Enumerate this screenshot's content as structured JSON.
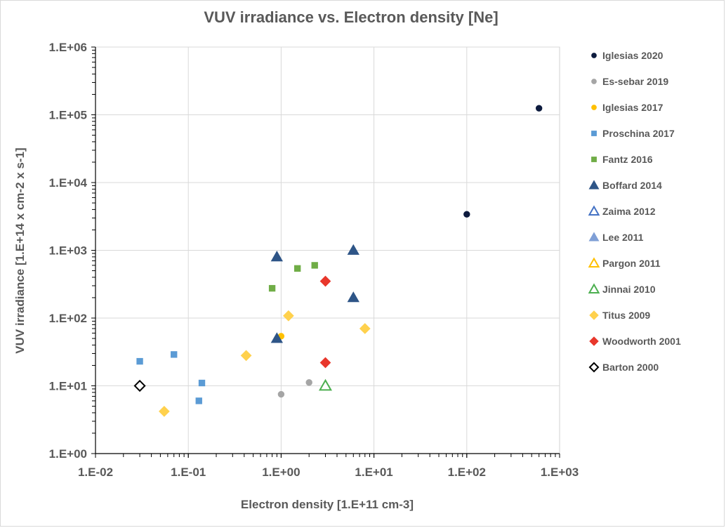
{
  "chart_data": {
    "type": "scatter",
    "title": "VUV irradiance vs. Electron density [Ne]",
    "xlabel": "Electron density [1.E+11 cm-3]",
    "ylabel": "VUV irradiance [1.E+14 x cm-2 x s-1]",
    "x_scale": "log",
    "y_scale": "log",
    "xlim": [
      0.01,
      1000
    ],
    "ylim": [
      1,
      1000000
    ],
    "x_ticks": [
      0.01,
      0.1,
      1,
      10,
      100,
      1000
    ],
    "x_tick_labels": [
      "1.E-02",
      "1.E-01",
      "1.E+00",
      "1.E+01",
      "1.E+02",
      "1.E+03"
    ],
    "y_ticks": [
      1,
      10,
      100,
      1000,
      10000,
      100000,
      1000000
    ],
    "y_tick_labels": [
      "1.E+00",
      "1.E+01",
      "1.E+02",
      "1.E+03",
      "1.E+04",
      "1.E+05",
      "1.E+06"
    ],
    "grid": true,
    "legend_position": "right",
    "series": [
      {
        "name": "Iglesias 2020",
        "marker": "circle",
        "color": "#0d1b3e",
        "filled": true,
        "points": [
          [
            100,
            3400
          ],
          [
            600,
            125000
          ]
        ]
      },
      {
        "name": "Es-sebar 2019",
        "marker": "circle",
        "color": "#a5a5a5",
        "filled": true,
        "points": [
          [
            1.0,
            7.5
          ],
          [
            2.0,
            11.2
          ]
        ]
      },
      {
        "name": "Iglesias 2017",
        "marker": "circle",
        "color": "#ffc000",
        "filled": true,
        "points": [
          [
            1.0,
            54
          ]
        ]
      },
      {
        "name": "Proschina 2017",
        "marker": "square",
        "color": "#5b9bd5",
        "filled": true,
        "points": [
          [
            0.03,
            23
          ],
          [
            0.07,
            29
          ],
          [
            0.13,
            6
          ],
          [
            0.14,
            11
          ]
        ]
      },
      {
        "name": "Fantz 2016",
        "marker": "square",
        "color": "#70ad47",
        "filled": true,
        "points": [
          [
            0.8,
            275
          ],
          [
            1.5,
            540
          ],
          [
            2.3,
            600
          ]
        ]
      },
      {
        "name": "Boffard 2014",
        "marker": "triangle",
        "color": "#2e5587",
        "filled": true,
        "points": [
          [
            0.9,
            800
          ],
          [
            0.9,
            50
          ],
          [
            6.0,
            1000
          ],
          [
            6.0,
            200
          ]
        ]
      },
      {
        "name": "Zaima 2012",
        "marker": "triangle",
        "color": "#4472c4",
        "filled": false,
        "points": []
      },
      {
        "name": "Lee 2011",
        "marker": "triangle",
        "color": "#7f9fd6",
        "filled": true,
        "points": []
      },
      {
        "name": "Pargon 2011",
        "marker": "triangle",
        "color": "#ffc000",
        "filled": false,
        "points": []
      },
      {
        "name": "Jinnai 2010",
        "marker": "triangle",
        "color": "#4caf50",
        "filled": false,
        "points": [
          [
            3.0,
            10
          ]
        ]
      },
      {
        "name": "Titus 2009",
        "marker": "diamond",
        "color": "#ffd14d",
        "filled": true,
        "points": [
          [
            0.055,
            4.2
          ],
          [
            0.42,
            28
          ],
          [
            1.2,
            108
          ],
          [
            8.0,
            70
          ]
        ]
      },
      {
        "name": "Woodworth 2001",
        "marker": "diamond",
        "color": "#e8372c",
        "filled": true,
        "points": [
          [
            3.0,
            350
          ],
          [
            3.0,
            22
          ]
        ]
      },
      {
        "name": "Barton 2000",
        "marker": "diamond",
        "color": "#000000",
        "filled": false,
        "points": [
          [
            0.03,
            10
          ]
        ]
      }
    ]
  }
}
